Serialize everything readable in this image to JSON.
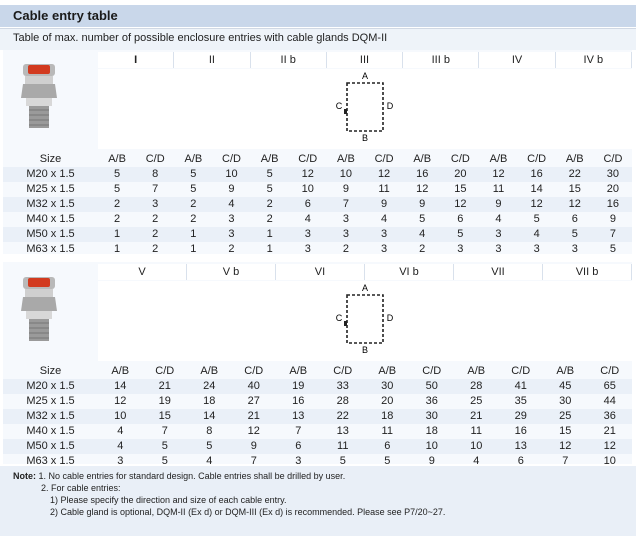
{
  "title": "Cable entry table",
  "subtitle": "Table of max. number of possible enclosure entries with cable glands DQM-II",
  "diagram_labels": {
    "top": "A",
    "left": "C",
    "right": "D",
    "bottom": "B"
  },
  "size_label": "Size",
  "sizes": [
    "M20 x 1.5",
    "M25 x 1.5",
    "M32 x 1.5",
    "M40 x 1.5",
    "M50 x 1.5",
    "M63 x 1.5"
  ],
  "sub_labels": [
    "A/B",
    "C/D"
  ],
  "table1": {
    "headers": [
      "I",
      "II",
      "II b",
      "III",
      "III b",
      "IV",
      "IV b"
    ],
    "rows": [
      [
        "5",
        "8",
        "5",
        "10",
        "5",
        "12",
        "10",
        "12",
        "16",
        "20",
        "12",
        "16",
        "22",
        "30"
      ],
      [
        "5",
        "7",
        "5",
        "9",
        "5",
        "10",
        "9",
        "11",
        "12",
        "15",
        "11",
        "14",
        "15",
        "20"
      ],
      [
        "2",
        "3",
        "2",
        "4",
        "2",
        "6",
        "7",
        "9",
        "9",
        "12",
        "9",
        "12",
        "12",
        "16"
      ],
      [
        "2",
        "2",
        "2",
        "3",
        "2",
        "4",
        "3",
        "4",
        "5",
        "6",
        "4",
        "5",
        "6",
        "9"
      ],
      [
        "1",
        "2",
        "1",
        "3",
        "1",
        "3",
        "3",
        "3",
        "4",
        "5",
        "3",
        "4",
        "5",
        "7"
      ],
      [
        "1",
        "2",
        "1",
        "2",
        "1",
        "3",
        "2",
        "3",
        "2",
        "3",
        "3",
        "3",
        "3",
        "5"
      ]
    ]
  },
  "table2": {
    "headers": [
      "V",
      "V b",
      "VI",
      "VI b",
      "VII",
      "VII b"
    ],
    "rows": [
      [
        "14",
        "21",
        "24",
        "40",
        "19",
        "33",
        "30",
        "50",
        "28",
        "41",
        "45",
        "65"
      ],
      [
        "12",
        "19",
        "18",
        "27",
        "16",
        "28",
        "20",
        "36",
        "25",
        "35",
        "30",
        "44"
      ],
      [
        "10",
        "15",
        "14",
        "21",
        "13",
        "22",
        "18",
        "30",
        "21",
        "29",
        "25",
        "36"
      ],
      [
        "4",
        "7",
        "8",
        "12",
        "7",
        "13",
        "11",
        "18",
        "11",
        "16",
        "15",
        "21"
      ],
      [
        "4",
        "5",
        "5",
        "9",
        "6",
        "11",
        "6",
        "10",
        "10",
        "13",
        "12",
        "12"
      ],
      [
        "3",
        "5",
        "4",
        "7",
        "3",
        "5",
        "5",
        "9",
        "4",
        "6",
        "7",
        "10"
      ]
    ]
  },
  "notes": {
    "label": "Note:",
    "n1": "1. No cable entries for standard design. Cable entries shall be drilled by user.",
    "n2": "2. For cable entries:",
    "n2a": "1) Please specify the direction and size of each cable entry.",
    "n2b": "2) Cable gland is optional, DQM-II (Ex d) or DQM-III (Ex d) is recommended. Please see P7/20~27."
  }
}
